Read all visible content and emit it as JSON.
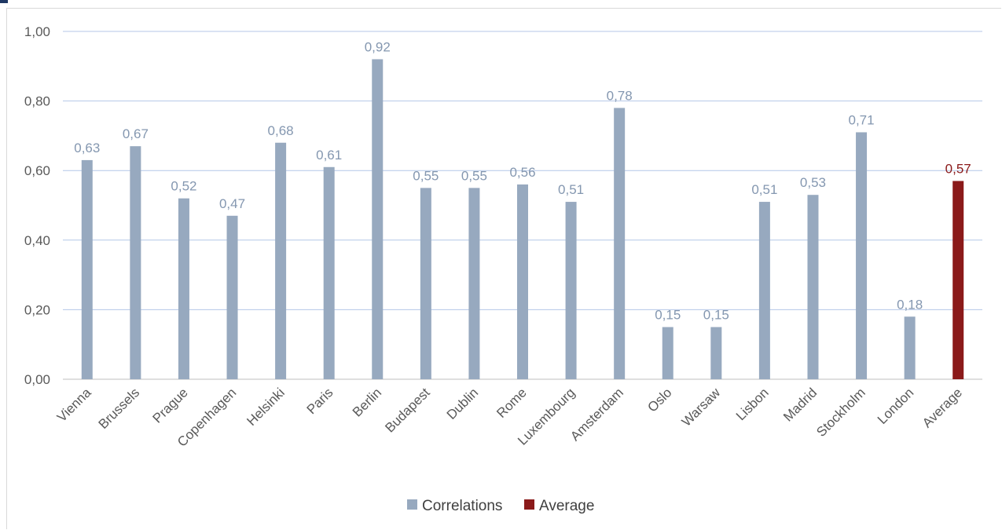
{
  "chart_data": {
    "type": "bar",
    "categories": [
      "Vienna",
      "Brussels",
      "Prague",
      "Copenhagen",
      "Helsinki",
      "Paris",
      "Berlin",
      "Budapest",
      "Dublin",
      "Rome",
      "Luxembourg",
      "Amsterdam",
      "Oslo",
      "Warsaw",
      "Lisbon",
      "Madrid",
      "Stockholm",
      "London",
      "Average"
    ],
    "series": [
      {
        "name": "Correlations",
        "color": "#97a9bf",
        "values": [
          0.63,
          0.67,
          0.52,
          0.47,
          0.68,
          0.61,
          0.92,
          0.55,
          0.55,
          0.56,
          0.51,
          0.78,
          0.15,
          0.15,
          0.51,
          0.53,
          0.71,
          0.18,
          null
        ]
      },
      {
        "name": "Average",
        "color": "#8b1a1a",
        "values": [
          null,
          null,
          null,
          null,
          null,
          null,
          null,
          null,
          null,
          null,
          null,
          null,
          null,
          null,
          null,
          null,
          null,
          null,
          0.57
        ]
      }
    ],
    "data_labels": [
      "0,63",
      "0,67",
      "0,52",
      "0,47",
      "0,68",
      "0,61",
      "0,92",
      "0,55",
      "0,55",
      "0,56",
      "0,51",
      "0,78",
      "0,15",
      "0,15",
      "0,51",
      "0,53",
      "0,71",
      "0,18",
      "0,57"
    ],
    "ylim": [
      0,
      1
    ],
    "yticks": [
      0,
      0.2,
      0.4,
      0.6,
      0.8,
      1.0
    ],
    "ytick_labels": [
      "0,00",
      "0,20",
      "0,40",
      "0,60",
      "0,80",
      "1,00"
    ],
    "grid": true,
    "legend_position": "bottom",
    "legend": [
      "Correlations",
      "Average"
    ],
    "title": "",
    "xlabel": "",
    "ylabel": ""
  }
}
